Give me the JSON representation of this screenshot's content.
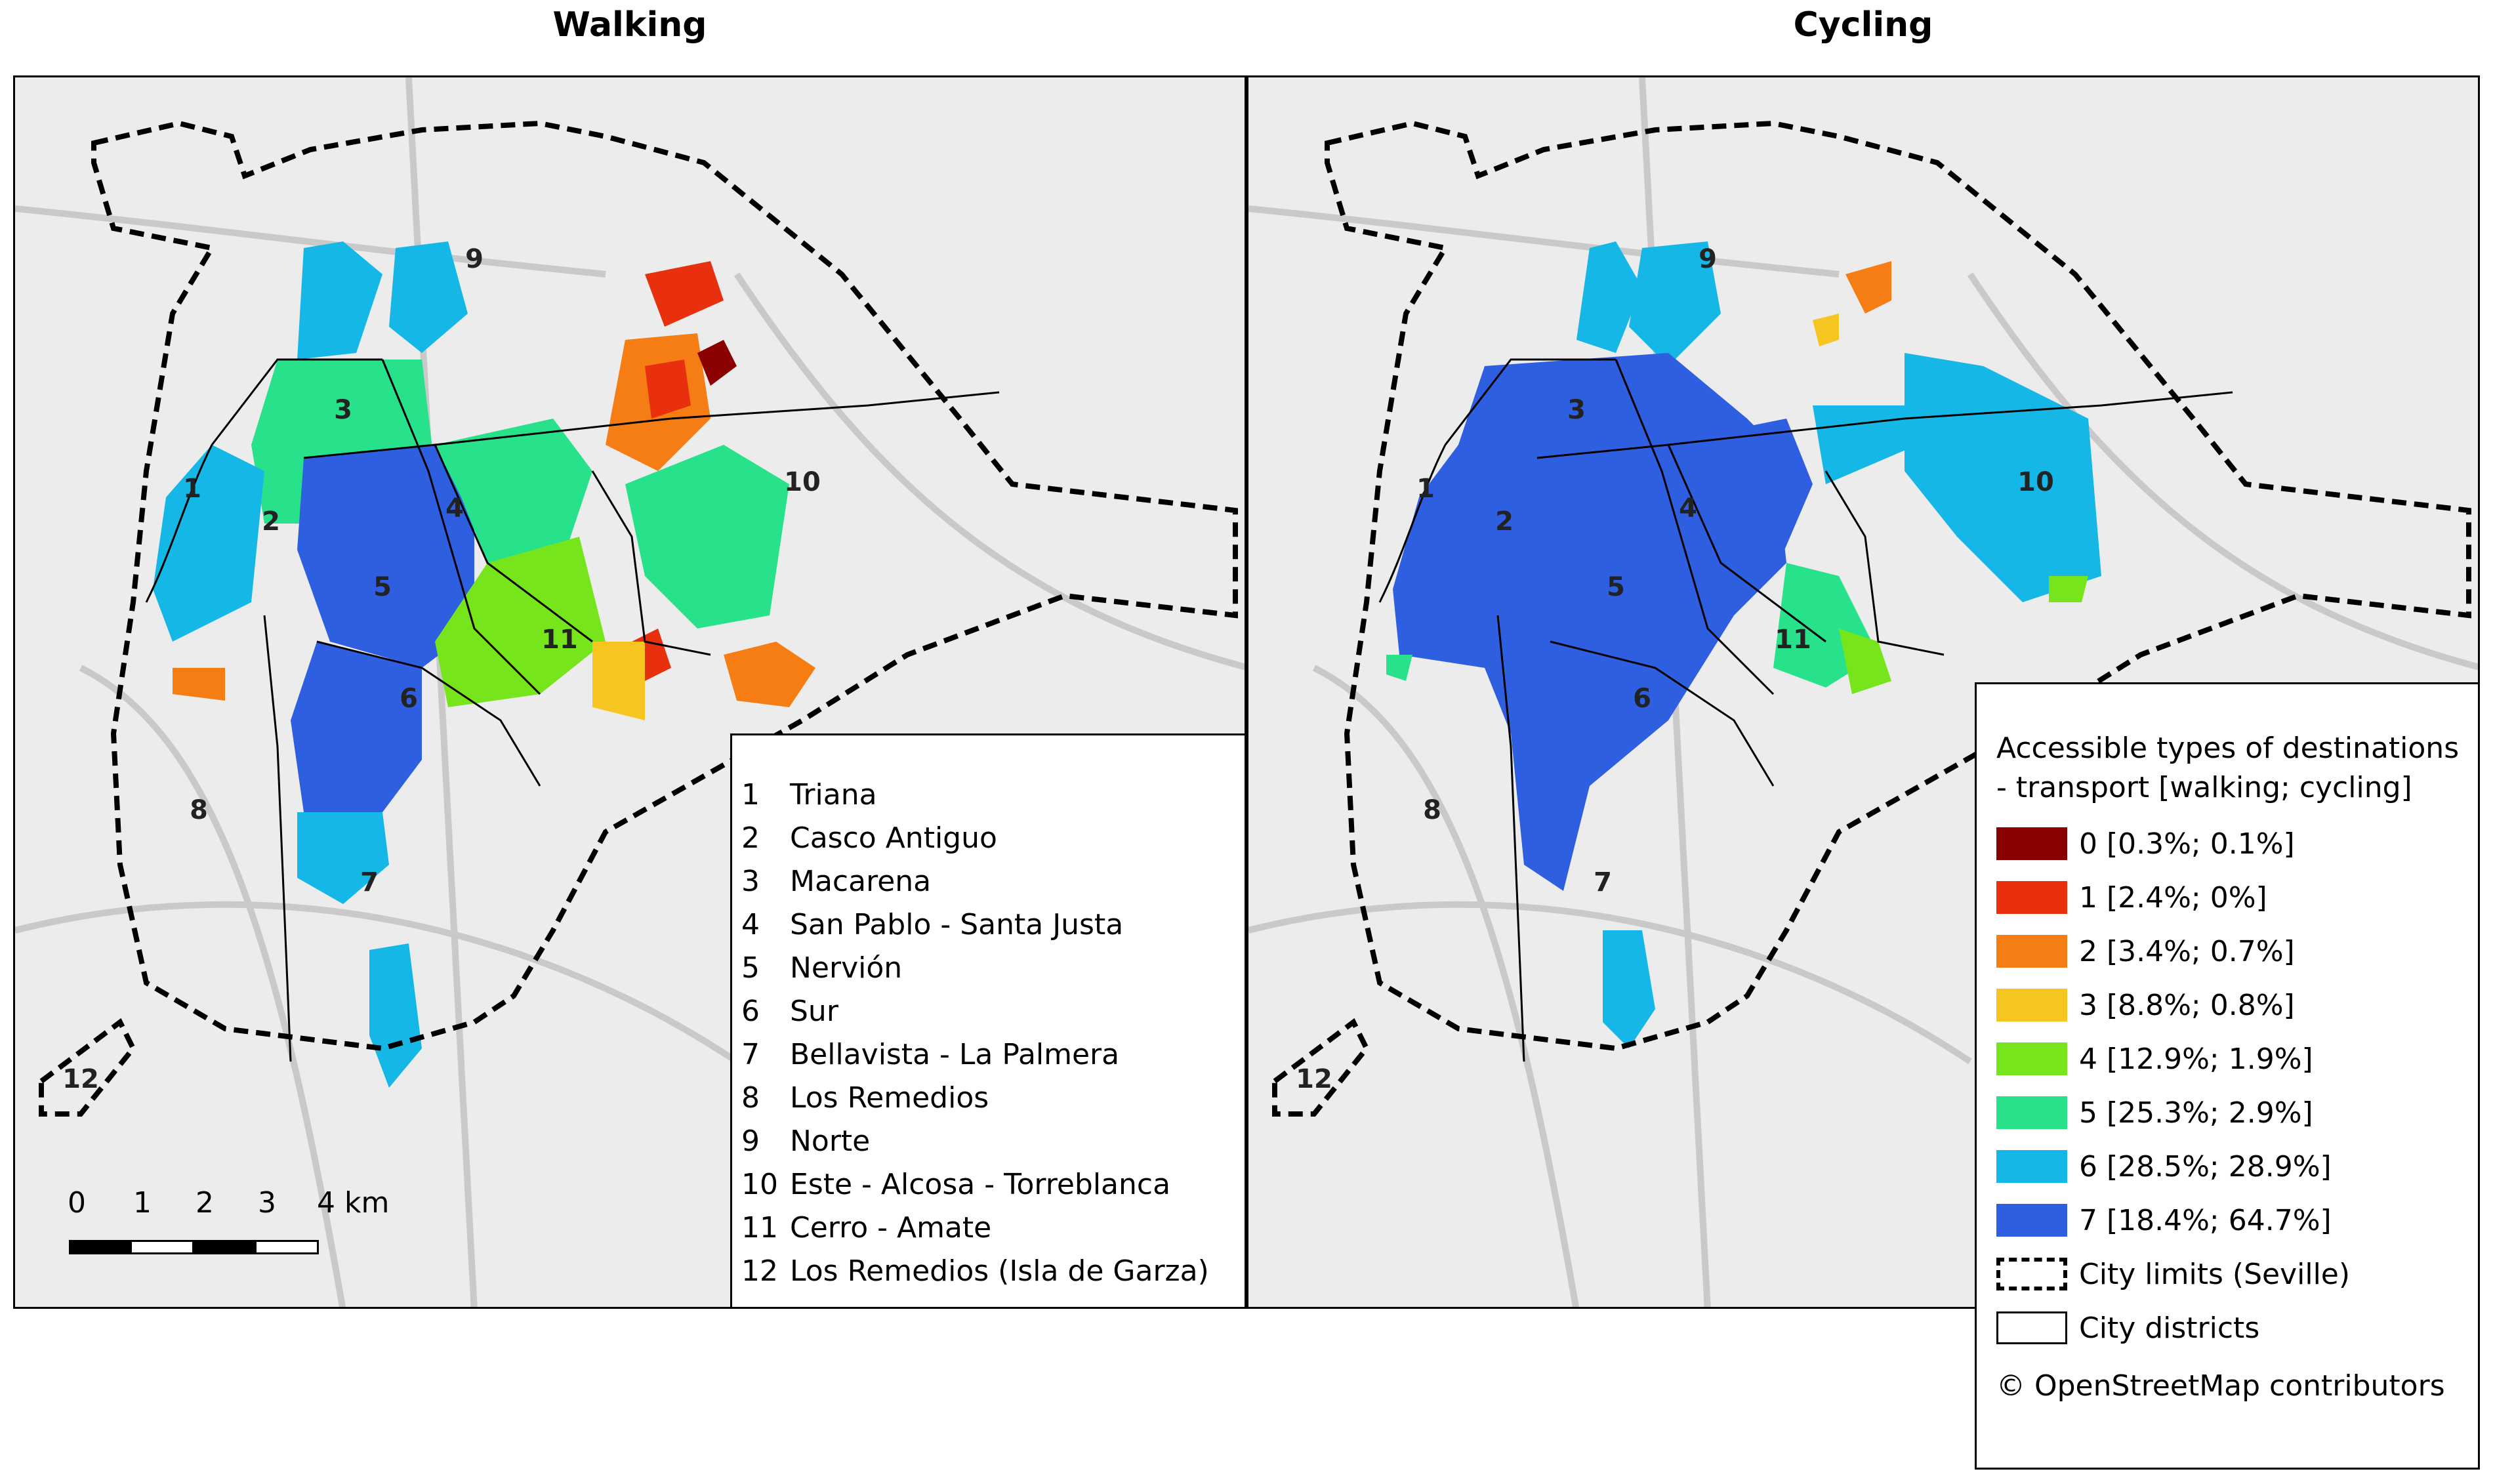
{
  "panels": [
    {
      "title": "Walking"
    },
    {
      "title": "Cycling"
    }
  ],
  "district_labels": [
    "1",
    "2",
    "3",
    "4",
    "5",
    "6",
    "7",
    "8",
    "9",
    "10",
    "11",
    "12"
  ],
  "districts_legend": [
    {
      "num": "1",
      "name": "Triana"
    },
    {
      "num": "2",
      "name": "Casco Antiguo"
    },
    {
      "num": "3",
      "name": "Macarena"
    },
    {
      "num": "4",
      "name": "San Pablo - Santa Justa"
    },
    {
      "num": "5",
      "name": "Nervión"
    },
    {
      "num": "6",
      "name": "Sur"
    },
    {
      "num": "7",
      "name": "Bellavista - La Palmera"
    },
    {
      "num": "8",
      "name": "Los Remedios"
    },
    {
      "num": "9",
      "name": "Norte"
    },
    {
      "num": "10",
      "name": "Este - Alcosa - Torreblanca"
    },
    {
      "num": "11",
      "name": "Cerro - Amate"
    },
    {
      "num": "12",
      "name": "Los Remedios (Isla de Garza)"
    }
  ],
  "scale_bar": {
    "labels": [
      "0",
      "1",
      "2",
      "3",
      "4 km"
    ]
  },
  "class_legend": {
    "title": "Accessible types of destinations - transport [walking; cycling]",
    "classes": [
      {
        "label": "0 [0.3%; 0.1%]",
        "color": "#8b0000"
      },
      {
        "label": "1 [2.4%; 0%]",
        "color": "#e8300f"
      },
      {
        "label": "2 [3.4%; 0.7%]",
        "color": "#f57d13"
      },
      {
        "label": "3 [8.8%; 0.8%]",
        "color": "#f7c51f"
      },
      {
        "label": "4 [12.9%; 1.9%]",
        "color": "#76e51c"
      },
      {
        "label": "5 [25.3%; 2.9%]",
        "color": "#27e28a"
      },
      {
        "label": "6 [28.5%; 28.9%]",
        "color": "#14b7e6"
      },
      {
        "label": "7 [18.4%; 64.7%]",
        "color": "#2e5fe0"
      }
    ],
    "city_limits_label": "City limits (Seville)",
    "city_districts_label": "City districts",
    "attribution": "© OpenStreetMap contributors"
  }
}
